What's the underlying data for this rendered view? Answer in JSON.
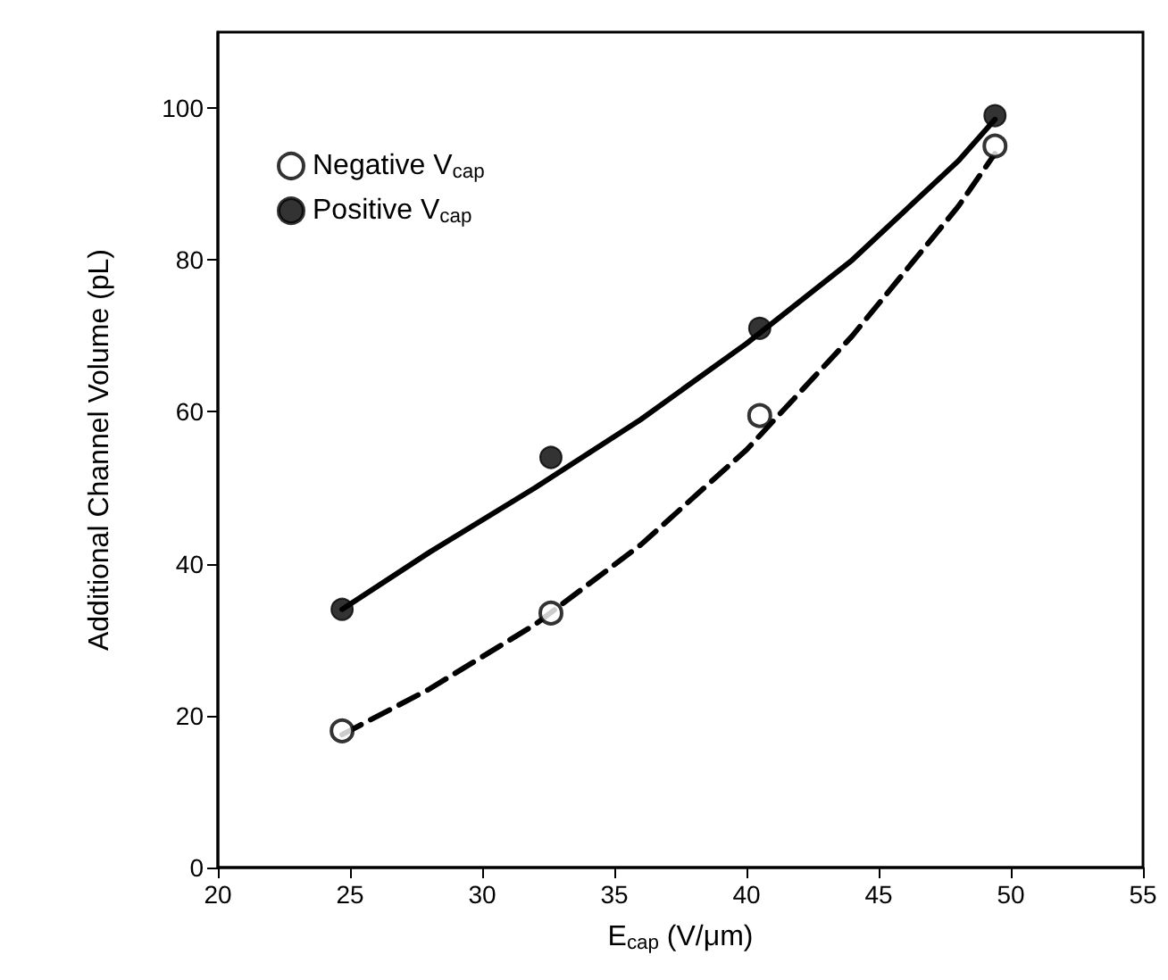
{
  "chart_data": {
    "type": "scatter",
    "xlabel": "E$_{cap}$ (V/μm)",
    "ylabel": "Additional Channel Volume (pL)",
    "xlim": [
      20,
      55
    ],
    "xticks": [
      20,
      25,
      30,
      35,
      40,
      45,
      50,
      55
    ],
    "ylim": [
      0,
      110
    ],
    "yticks": [
      0,
      20,
      40,
      60,
      80,
      100
    ],
    "grid": false,
    "legend": "top left",
    "marker": "circle",
    "series": [
      {
        "name": "Negative V$_{cap}$",
        "marker": "open circle",
        "color": "#000000",
        "x": [
          24.7,
          32.6,
          40.5,
          49.4
        ],
        "values": [
          18,
          33.5,
          59.5,
          95
        ]
      },
      {
        "name": "Positive V$_{cap}$",
        "color": "#000000",
        "x": [
          24.7,
          32.6,
          40.5,
          49.4
        ],
        "values": [
          34,
          54,
          71,
          99
        ]
      },
      {
        "type": "line",
        "marker": "none",
        "line_style": "dashed",
        "color": "#000000",
        "x": [
          24.7,
          28,
          32,
          36,
          40,
          44,
          48,
          49.4
        ],
        "values": [
          17.5,
          23.5,
          32,
          42.5,
          55,
          70,
          87,
          94
        ]
      },
      {
        "type": "line",
        "marker": "none",
        "line_style": "solid",
        "color": "#000000",
        "x": [
          24.7,
          28,
          32,
          36,
          40,
          44,
          48,
          49.4
        ],
        "values": [
          34,
          41.5,
          50,
          59,
          69,
          80,
          93,
          98.5
        ]
      }
    ]
  }
}
